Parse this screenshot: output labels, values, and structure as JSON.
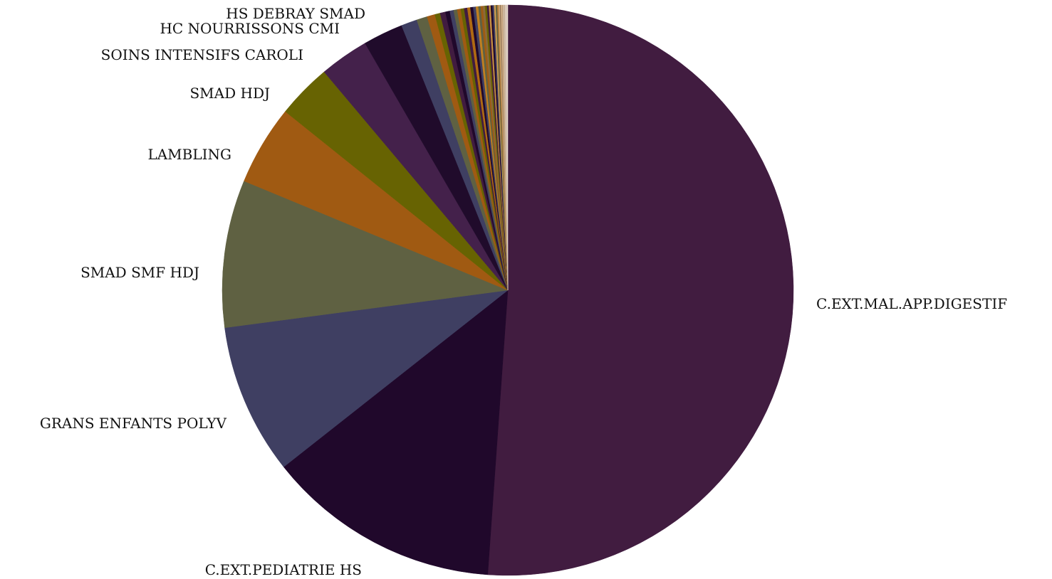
{
  "chart_data": {
    "type": "pie",
    "title": "",
    "start_angle_deg": 0,
    "direction": "clockwise",
    "slices": [
      {
        "label": "C.EXT.MAL.APP.DIGESTIF",
        "value": 50.97,
        "color": "#411C40"
      },
      {
        "label": "C.EXT.PEDIATRIE HS",
        "value": 13.2,
        "color": "#20082B"
      },
      {
        "label": "GRANS ENFANTS POLYV",
        "value": 8.51,
        "color": "#3F3F62"
      },
      {
        "label": "SMAD SMF HDJ",
        "value": 8.33,
        "color": "#5F6142"
      },
      {
        "label": "LAMBLING",
        "value": 4.51,
        "color": "#A05A12"
      },
      {
        "label": "SMAD HDJ",
        "value": 3.09,
        "color": "#676302"
      },
      {
        "label": "",
        "value": 2.78,
        "color": "#44214B"
      },
      {
        "label": "SOINS INTENSIFS CAROLI",
        "value": 2.26,
        "color": "#200B2B"
      },
      {
        "label": "",
        "value": 0.9,
        "color": "#3F3F62"
      },
      {
        "label": "HC NOURRISSONS CMI",
        "value": 0.6,
        "color": "#5F6142"
      },
      {
        "label": "",
        "value": 0.45,
        "color": "#A05A12"
      },
      {
        "label": "HS DEBRAY SMAD",
        "value": 0.3,
        "color": "#676302"
      },
      {
        "label": "",
        "value": 0.3,
        "color": "#411C40"
      },
      {
        "label": "",
        "value": 0.25,
        "color": "#20082B"
      },
      {
        "label": "",
        "value": 0.22,
        "color": "#3F3F62"
      },
      {
        "label": "",
        "value": 0.2,
        "color": "#5F6142"
      },
      {
        "label": "",
        "value": 0.2,
        "color": "#A05A12"
      },
      {
        "label": "",
        "value": 0.19,
        "color": "#676302"
      },
      {
        "label": "",
        "value": 0.18,
        "color": "#411C40"
      },
      {
        "label": "",
        "value": 0.17,
        "color": "#B06A12"
      },
      {
        "label": "",
        "value": 0.16,
        "color": "#20082B"
      },
      {
        "label": "",
        "value": 0.15,
        "color": "#3F3F62"
      },
      {
        "label": "",
        "value": 0.14,
        "color": "#C08020"
      },
      {
        "label": "",
        "value": 0.13,
        "color": "#5F6142"
      },
      {
        "label": "",
        "value": 0.12,
        "color": "#A05A12"
      },
      {
        "label": "",
        "value": 0.12,
        "color": "#8A6A3A"
      },
      {
        "label": "",
        "value": 0.11,
        "color": "#676302"
      },
      {
        "label": "",
        "value": 0.11,
        "color": "#411C40"
      },
      {
        "label": "",
        "value": 0.1,
        "color": "#C89040"
      },
      {
        "label": "",
        "value": 0.1,
        "color": "#20082B"
      },
      {
        "label": "",
        "value": 0.09,
        "color": "#3F3F62"
      },
      {
        "label": "",
        "value": 0.09,
        "color": "#D0A050"
      },
      {
        "label": "",
        "value": 0.08,
        "color": "#5F6142"
      },
      {
        "label": "",
        "value": 0.08,
        "color": "#B07838"
      },
      {
        "label": "",
        "value": 0.07,
        "color": "#C8A878"
      },
      {
        "label": "",
        "value": 0.07,
        "color": "#9A7A5A"
      },
      {
        "label": "",
        "value": 0.06,
        "color": "#D8B890"
      },
      {
        "label": "",
        "value": 0.06,
        "color": "#B89878"
      },
      {
        "label": "",
        "value": 0.05,
        "color": "#D8C8B0"
      },
      {
        "label": "",
        "value": 0.05,
        "color": "#C0A890"
      },
      {
        "label": "",
        "value": 0.05,
        "color": "#E0D0C0"
      },
      {
        "label": "",
        "value": 0.05,
        "color": "#D0C0B0"
      },
      {
        "label": "",
        "value": 0.05,
        "color": "#E8DCD0"
      }
    ]
  }
}
